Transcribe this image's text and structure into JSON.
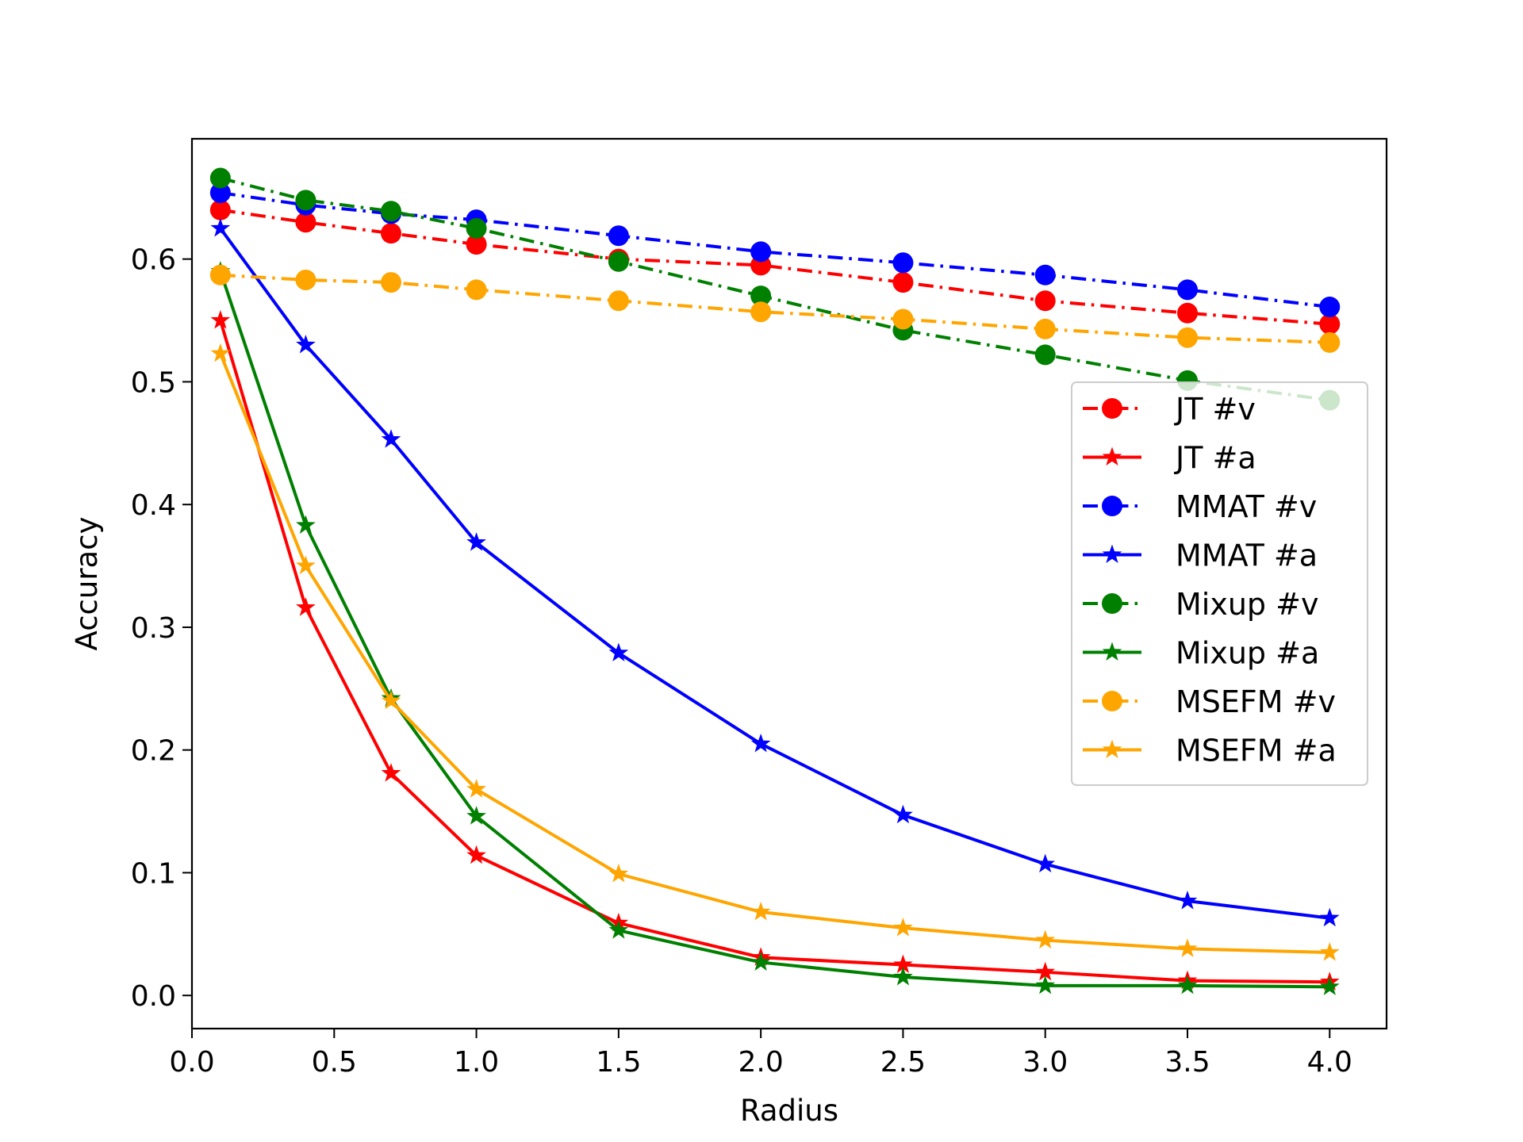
{
  "chart_data": {
    "type": "line",
    "title": "",
    "xlabel": "Radius",
    "ylabel": "Accuracy",
    "xlim": [
      0.0,
      4.2
    ],
    "ylim": [
      -0.027,
      0.698
    ],
    "xticks": [
      0.0,
      0.5,
      1.0,
      1.5,
      2.0,
      2.5,
      3.0,
      3.5,
      4.0
    ],
    "xtick_labels": [
      "0.0",
      "0.5",
      "1.0",
      "1.5",
      "2.0",
      "2.5",
      "3.0",
      "3.5",
      "4.0"
    ],
    "yticks": [
      0.0,
      0.1,
      0.2,
      0.3,
      0.4,
      0.5,
      0.6
    ],
    "ytick_labels": [
      "0.0",
      "0.1",
      "0.2",
      "0.3",
      "0.4",
      "0.5",
      "0.6"
    ],
    "grid": false,
    "legend_position": "center-right",
    "x": [
      0.1,
      0.4,
      0.7,
      1.0,
      1.5,
      2.0,
      2.5,
      3.0,
      3.5,
      4.0
    ],
    "series": [
      {
        "name": "JT #v",
        "color": "#ff0000",
        "marker": "circle",
        "linestyle": "dashdot",
        "values": [
          0.64,
          0.63,
          0.621,
          0.612,
          0.6,
          0.595,
          0.581,
          0.566,
          0.556,
          0.547
        ]
      },
      {
        "name": "JT #a",
        "color": "#ff0000",
        "marker": "star",
        "linestyle": "solid",
        "values": [
          0.55,
          0.316,
          0.181,
          0.114,
          0.059,
          0.031,
          0.025,
          0.019,
          0.012,
          0.011
        ]
      },
      {
        "name": "MMAT #v",
        "color": "#0000ff",
        "marker": "circle",
        "linestyle": "dashdot",
        "values": [
          0.654,
          0.644,
          0.637,
          0.632,
          0.619,
          0.606,
          0.597,
          0.587,
          0.575,
          0.561
        ]
      },
      {
        "name": "MMAT #a",
        "color": "#0000ff",
        "marker": "star",
        "linestyle": "solid",
        "values": [
          0.625,
          0.53,
          0.453,
          0.369,
          0.279,
          0.205,
          0.147,
          0.107,
          0.077,
          0.063
        ]
      },
      {
        "name": "Mixup #v",
        "color": "#008000",
        "marker": "circle",
        "linestyle": "dashdot",
        "values": [
          0.666,
          0.648,
          0.639,
          0.625,
          0.598,
          0.57,
          0.542,
          0.522,
          0.501,
          0.485
        ]
      },
      {
        "name": "Mixup #a",
        "color": "#008000",
        "marker": "star",
        "linestyle": "solid",
        "values": [
          0.59,
          0.383,
          0.242,
          0.146,
          0.053,
          0.027,
          0.015,
          0.008,
          0.008,
          0.007
        ]
      },
      {
        "name": "MSEFM #v",
        "color": "#ffa500",
        "marker": "circle",
        "linestyle": "dashdot",
        "values": [
          0.587,
          0.583,
          0.581,
          0.575,
          0.566,
          0.557,
          0.551,
          0.543,
          0.536,
          0.532
        ]
      },
      {
        "name": "MSEFM #a",
        "color": "#ffa500",
        "marker": "star",
        "linestyle": "solid",
        "values": [
          0.523,
          0.35,
          0.24,
          0.168,
          0.099,
          0.068,
          0.055,
          0.045,
          0.038,
          0.035
        ]
      }
    ]
  }
}
